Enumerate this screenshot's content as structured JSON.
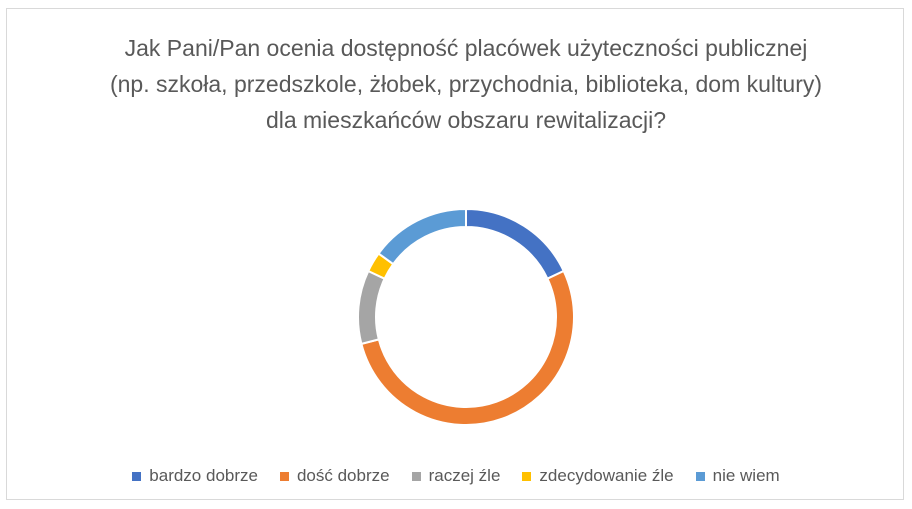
{
  "chart_data": {
    "type": "donut",
    "title": "Jak Pani/Pan ocenia dostępność placówek użyteczności publicznej (np. szkoła, przedszkole, żłobek, przychodnia, biblioteka, dom kultury) dla mieszkańców obszaru rewitalizacji?",
    "categories": [
      "bardzo dobrze",
      "dość dobrze",
      "raczej źle",
      "zdecydowanie źle",
      "nie wiem"
    ],
    "values": [
      18,
      53,
      11,
      3,
      15
    ],
    "colors": [
      "#4472c4",
      "#ed7d31",
      "#a5a5a5",
      "#ffc000",
      "#5b9bd5"
    ],
    "legend": "bottom"
  }
}
